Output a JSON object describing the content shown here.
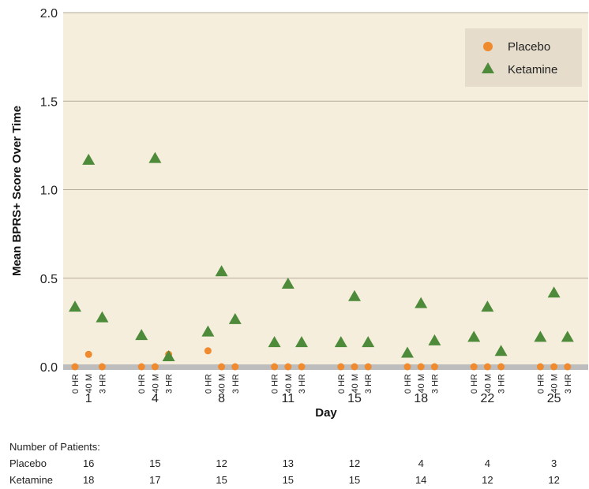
{
  "chart_data": {
    "type": "scatter",
    "ylabel": "Mean BPRS+ Score Over Time",
    "xlabel": "Day",
    "ylim": [
      0.0,
      2.0
    ],
    "yticks": [
      "0.0",
      "0.5",
      "1.0",
      "1.5",
      "2.0"
    ],
    "grid": "horizontal",
    "legend_position": "top-right",
    "days": [
      "1",
      "4",
      "8",
      "11",
      "15",
      "18",
      "22",
      "25"
    ],
    "timepoints": [
      "0 HR",
      "40 M",
      "3 HR"
    ],
    "series": [
      {
        "name": "Placebo",
        "marker": "circle",
        "color": "#ef8a2e",
        "values": [
          [
            0.0,
            0.07,
            0.0
          ],
          [
            0.0,
            0.0,
            0.07
          ],
          [
            0.09,
            0.0,
            0.0
          ],
          [
            0.0,
            0.0,
            0.0
          ],
          [
            0.0,
            0.0,
            0.0
          ],
          [
            0.0,
            0.0,
            0.0
          ],
          [
            0.0,
            0.0,
            0.0
          ],
          [
            0.0,
            0.0,
            0.0
          ]
        ]
      },
      {
        "name": "Ketamine",
        "marker": "triangle",
        "color": "#4d8a3a",
        "values": [
          [
            0.34,
            1.17,
            0.28
          ],
          [
            0.18,
            1.18,
            0.06
          ],
          [
            0.2,
            0.54,
            0.27
          ],
          [
            0.14,
            0.47,
            0.14
          ],
          [
            0.14,
            0.4,
            0.14
          ],
          [
            0.08,
            0.36,
            0.15
          ],
          [
            0.17,
            0.34,
            0.09
          ],
          [
            0.17,
            0.42,
            0.17
          ]
        ]
      }
    ]
  },
  "patients": {
    "title": "Number of Patients:",
    "rows": [
      {
        "label": "Placebo",
        "counts": [
          "16",
          "15",
          "12",
          "13",
          "12",
          "4",
          "4",
          "3"
        ]
      },
      {
        "label": "Ketamine",
        "counts": [
          "18",
          "17",
          "15",
          "15",
          "15",
          "14",
          "12",
          "12"
        ]
      }
    ]
  },
  "colors": {
    "plot_background": "#f6eedc",
    "gridline": "#b3aa9a",
    "baseline": "#bdbdbd",
    "legend_background": "#e5dccb"
  }
}
